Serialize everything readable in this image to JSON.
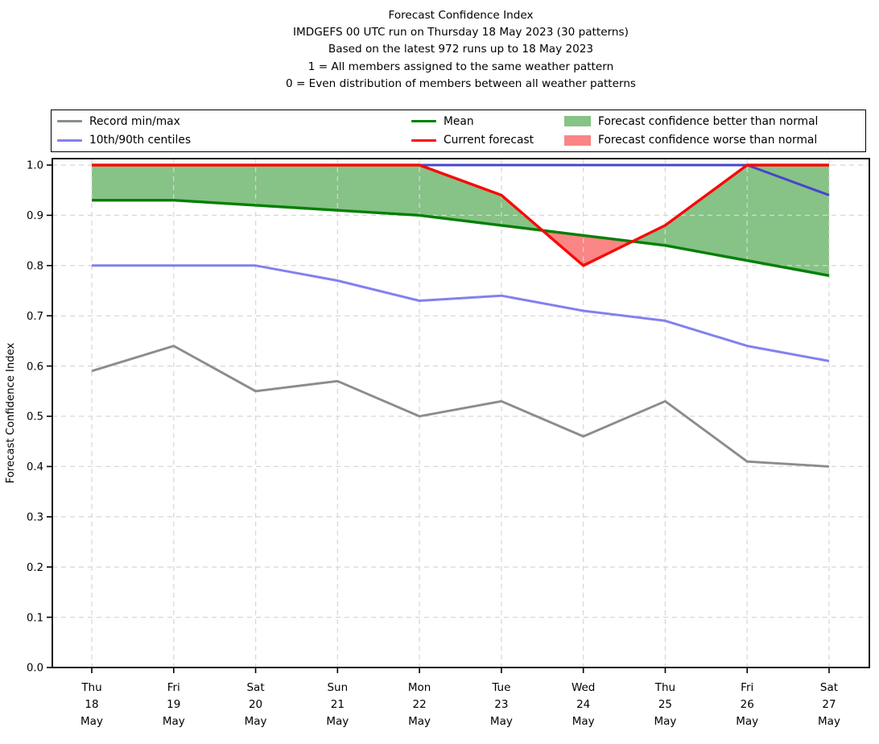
{
  "title": {
    "line1": "Forecast Confidence Index",
    "line2": "IMDGEFS 00 UTC run on Thursday 18 May 2023 (30 patterns)",
    "line3": "Based on the latest 972 runs up to 18 May 2023",
    "line4": "1 = All members assigned to the same weather pattern",
    "line5": "0 = Even distribution of members between all weather patterns"
  },
  "legend": {
    "items": [
      {
        "label": "Record min/max",
        "type": "line",
        "color": "#8c8c8c"
      },
      {
        "label": "10th/90th centiles",
        "type": "line",
        "color": "#8181f0"
      },
      {
        "label": "Mean",
        "type": "line",
        "color": "#047f04"
      },
      {
        "label": "Current forecast",
        "type": "line",
        "color": "#fb0707"
      },
      {
        "label": "Forecast confidence better than normal",
        "type": "patch",
        "color": "#87c287"
      },
      {
        "label": "Forecast confidence worse than normal",
        "type": "patch",
        "color": "#fa8585"
      }
    ]
  },
  "chart_data": {
    "type": "line",
    "title": "Forecast Confidence Index",
    "ylabel": "Forecast Confidence Index",
    "ylim": [
      0.0,
      1.0
    ],
    "yticks": [
      0.0,
      0.1,
      0.2,
      0.3,
      0.4,
      0.5,
      0.6,
      0.7,
      0.8,
      0.9,
      1.0
    ],
    "grid": true,
    "grid_style": "dashed",
    "grid_color": "#d7d7d7",
    "legend_position": "top",
    "categories": [
      {
        "day": "Thu",
        "date": "18",
        "month": "May"
      },
      {
        "day": "Fri",
        "date": "19",
        "month": "May"
      },
      {
        "day": "Sat",
        "date": "20",
        "month": "May"
      },
      {
        "day": "Sun",
        "date": "21",
        "month": "May"
      },
      {
        "day": "Mon",
        "date": "22",
        "month": "May"
      },
      {
        "day": "Tue",
        "date": "23",
        "month": "May"
      },
      {
        "day": "Wed",
        "date": "24",
        "month": "May"
      },
      {
        "day": "Thu",
        "date": "25",
        "month": "May"
      },
      {
        "day": "Fri",
        "date": "26",
        "month": "May"
      },
      {
        "day": "Sat",
        "date": "27",
        "month": "May"
      }
    ],
    "series": [
      {
        "key": "record_max",
        "name": "Record max",
        "color": "#8c8c8c",
        "width": 2.9,
        "values": [
          1.0,
          1.0,
          1.0,
          1.0,
          1.0,
          1.0,
          1.0,
          1.0,
          1.0,
          1.0
        ]
      },
      {
        "key": "record_min",
        "name": "Record min",
        "color": "#8c8c8c",
        "width": 2.9,
        "values": [
          0.59,
          0.64,
          0.55,
          0.57,
          0.5,
          0.53,
          0.46,
          0.53,
          0.41,
          0.4
        ]
      },
      {
        "key": "centile_90",
        "name": "90th centile",
        "color": "#4646c8",
        "width": 3.0,
        "values": [
          1.0,
          1.0,
          1.0,
          1.0,
          1.0,
          1.0,
          1.0,
          1.0,
          1.0,
          0.94
        ]
      },
      {
        "key": "centile_10",
        "name": "10th centile",
        "color": "#8181f0",
        "width": 3.0,
        "values": [
          0.8,
          0.8,
          0.8,
          0.77,
          0.73,
          0.74,
          0.71,
          0.69,
          0.64,
          0.61
        ]
      },
      {
        "key": "mean",
        "name": "Mean",
        "color": "#047f04",
        "width": 3.4,
        "values": [
          0.93,
          0.93,
          0.92,
          0.91,
          0.9,
          0.88,
          0.86,
          0.84,
          0.81,
          0.78
        ]
      },
      {
        "key": "current",
        "name": "Current forecast",
        "color": "#fb0707",
        "width": 3.4,
        "values": [
          1.0,
          1.0,
          1.0,
          1.0,
          1.0,
          0.94,
          0.8,
          0.88,
          1.0,
          1.0
        ]
      }
    ],
    "fills": [
      {
        "between": [
          "current",
          "mean"
        ],
        "when": "above",
        "color": "#87c287",
        "label": "Forecast confidence better than normal"
      },
      {
        "between": [
          "current",
          "mean"
        ],
        "when": "below",
        "color": "#fa8585",
        "label": "Forecast confidence worse than normal"
      }
    ]
  }
}
